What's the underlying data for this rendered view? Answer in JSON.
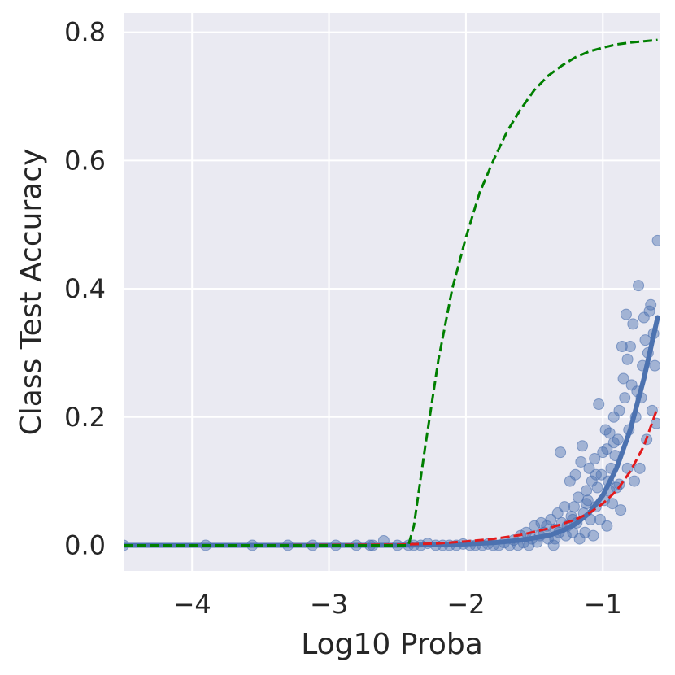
{
  "chart_data": {
    "type": "scatter",
    "title": "",
    "xlabel": "Log10 Proba",
    "ylabel": "Class Test Accuracy",
    "xlim": [
      -4.5,
      -0.58
    ],
    "ylim": [
      -0.04,
      0.83
    ],
    "xticks": [
      -4,
      -3,
      -2,
      -1
    ],
    "xtick_labels": [
      "−4",
      "−3",
      "−2",
      "−1"
    ],
    "yticks": [
      0.0,
      0.2,
      0.4,
      0.6,
      0.8
    ],
    "ytick_labels": [
      "0.0",
      "0.2",
      "0.4",
      "0.6",
      "0.8"
    ],
    "grid": true,
    "legend": "none",
    "colors": {
      "background": "#eaeaf2",
      "grid": "#ffffff",
      "points": "#4c72b0",
      "fit": "#4c72b0",
      "lower_bound": "#e31a1c",
      "upper_bound": "#007f00"
    },
    "series": [
      {
        "kind": "scatter",
        "color": "#4c72b0",
        "points": [
          [
            -4.5,
            0.0
          ],
          [
            -3.9,
            0.0
          ],
          [
            -3.56,
            0.0
          ],
          [
            -3.3,
            0.0
          ],
          [
            -3.12,
            0.0
          ],
          [
            -2.95,
            0.0
          ],
          [
            -2.8,
            0.0
          ],
          [
            -2.7,
            0.0
          ],
          [
            -2.68,
            0.0
          ],
          [
            -2.6,
            0.007
          ],
          [
            -2.5,
            0.0
          ],
          [
            -2.42,
            0.0
          ],
          [
            -2.38,
            0.0
          ],
          [
            -2.33,
            0.0
          ],
          [
            -2.28,
            0.003
          ],
          [
            -2.22,
            0.0
          ],
          [
            -2.17,
            0.0
          ],
          [
            -2.12,
            0.0
          ],
          [
            -2.07,
            0.0
          ],
          [
            -2.02,
            0.002
          ],
          [
            -1.97,
            0.0
          ],
          [
            -1.93,
            0.0
          ],
          [
            -1.88,
            0.0
          ],
          [
            -1.84,
            0.002
          ],
          [
            -1.8,
            0.0
          ],
          [
            -1.76,
            0.0
          ],
          [
            -1.72,
            0.004
          ],
          [
            -1.68,
            0.0
          ],
          [
            -1.65,
            0.008
          ],
          [
            -1.62,
            0.0
          ],
          [
            -1.6,
            0.015
          ],
          [
            -1.58,
            0.004
          ],
          [
            -1.56,
            0.02
          ],
          [
            -1.54,
            0.0
          ],
          [
            -1.52,
            0.01
          ],
          [
            -1.5,
            0.03
          ],
          [
            -1.48,
            0.005
          ],
          [
            -1.46,
            0.015
          ],
          [
            -1.45,
            0.035
          ],
          [
            -1.43,
            0.02
          ],
          [
            -1.41,
            0.03
          ],
          [
            -1.4,
            0.01
          ],
          [
            -1.38,
            0.04
          ],
          [
            -1.36,
            0.0
          ],
          [
            -1.35,
            0.025
          ],
          [
            -1.33,
            0.05
          ],
          [
            -1.32,
            0.02
          ],
          [
            -1.31,
            0.145
          ],
          [
            -1.3,
            0.035
          ],
          [
            -1.28,
            0.06
          ],
          [
            -1.27,
            0.015
          ],
          [
            -1.26,
            0.03
          ],
          [
            -1.24,
            0.1
          ],
          [
            -1.23,
            0.045
          ],
          [
            -1.22,
            0.02
          ],
          [
            -1.21,
            0.06
          ],
          [
            -1.2,
            0.11
          ],
          [
            -1.19,
            0.035
          ],
          [
            -1.18,
            0.075
          ],
          [
            -1.17,
            0.01
          ],
          [
            -1.16,
            0.13
          ],
          [
            -1.15,
            0.155
          ],
          [
            -1.14,
            0.05
          ],
          [
            -1.13,
            0.02
          ],
          [
            -1.12,
            0.085
          ],
          [
            -1.11,
            0.07
          ],
          [
            -1.1,
            0.12
          ],
          [
            -1.09,
            0.04
          ],
          [
            -1.08,
            0.1
          ],
          [
            -1.07,
            0.015
          ],
          [
            -1.06,
            0.135
          ],
          [
            -1.05,
            0.06
          ],
          [
            -1.04,
            0.09
          ],
          [
            -1.03,
            0.22
          ],
          [
            -1.02,
            0.04
          ],
          [
            -1.01,
            0.11
          ],
          [
            -1.0,
            0.145
          ],
          [
            -0.99,
            0.07
          ],
          [
            -0.98,
            0.18
          ],
          [
            -0.97,
            0.03
          ],
          [
            -0.96,
            0.1
          ],
          [
            -0.95,
            0.175
          ],
          [
            -0.94,
            0.12
          ],
          [
            -0.93,
            0.065
          ],
          [
            -0.92,
            0.2
          ],
          [
            -0.91,
            0.14
          ],
          [
            -0.9,
            0.09
          ],
          [
            -0.89,
            0.165
          ],
          [
            -0.88,
            0.21
          ],
          [
            -0.87,
            0.055
          ],
          [
            -0.86,
            0.31
          ],
          [
            -0.85,
            0.26
          ],
          [
            -0.84,
            0.23
          ],
          [
            -0.83,
            0.36
          ],
          [
            -0.82,
            0.29
          ],
          [
            -0.81,
            0.18
          ],
          [
            -0.8,
            0.31
          ],
          [
            -0.79,
            0.25
          ],
          [
            -0.78,
            0.345
          ],
          [
            -0.77,
            0.1
          ],
          [
            -0.76,
            0.2
          ],
          [
            -0.75,
            0.24
          ],
          [
            -0.74,
            0.405
          ],
          [
            -0.73,
            0.12
          ],
          [
            -0.72,
            0.23
          ],
          [
            -0.71,
            0.28
          ],
          [
            -0.7,
            0.355
          ],
          [
            -0.69,
            0.32
          ],
          [
            -0.68,
            0.165
          ],
          [
            -0.67,
            0.3
          ],
          [
            -0.66,
            0.365
          ],
          [
            -0.65,
            0.375
          ],
          [
            -0.64,
            0.21
          ],
          [
            -0.63,
            0.33
          ],
          [
            -0.62,
            0.28
          ],
          [
            -0.61,
            0.19
          ],
          [
            -0.6,
            0.475
          ],
          [
            -0.92,
            0.16
          ],
          [
            -0.95,
            0.085
          ],
          [
            -1.05,
            0.11
          ],
          [
            -0.88,
            0.095
          ],
          [
            -0.82,
            0.12
          ],
          [
            -0.97,
            0.15
          ],
          [
            -1.12,
            0.065
          ],
          [
            -1.22,
            0.04
          ],
          [
            -1.35,
            0.01
          ]
        ]
      },
      {
        "kind": "line",
        "style": "solid",
        "color": "#4c72b0",
        "x": [
          -4.5,
          -3.5,
          -2.5,
          -2.2,
          -2.0,
          -1.8,
          -1.6,
          -1.4,
          -1.3,
          -1.2,
          -1.1,
          -1.0,
          -0.9,
          -0.8,
          -0.7,
          -0.6
        ],
        "y": [
          0.0,
          0.0,
          0.0,
          0.001,
          0.002,
          0.004,
          0.008,
          0.015,
          0.022,
          0.033,
          0.05,
          0.078,
          0.12,
          0.18,
          0.26,
          0.355
        ]
      },
      {
        "kind": "line",
        "style": "dashed",
        "color": "#e31a1c",
        "x": [
          -4.5,
          -3.5,
          -2.5,
          -2.2,
          -2.0,
          -1.8,
          -1.6,
          -1.4,
          -1.2,
          -1.1,
          -1.0,
          -0.9,
          -0.8,
          -0.7,
          -0.6
        ],
        "y": [
          0.0,
          0.0,
          0.001,
          0.003,
          0.006,
          0.01,
          0.016,
          0.026,
          0.04,
          0.05,
          0.065,
          0.085,
          0.115,
          0.155,
          0.215
        ]
      },
      {
        "kind": "line",
        "style": "dashed",
        "color": "#007f00",
        "x": [
          -4.5,
          -3.0,
          -2.42,
          -2.38,
          -2.3,
          -2.2,
          -2.1,
          -2.0,
          -1.9,
          -1.8,
          -1.7,
          -1.6,
          -1.5,
          -1.4,
          -1.3,
          -1.2,
          -1.1,
          -1.0,
          -0.9,
          -0.8,
          -0.7,
          -0.6
        ],
        "y": [
          0.0,
          0.0,
          0.0,
          0.03,
          0.15,
          0.29,
          0.4,
          0.48,
          0.55,
          0.6,
          0.645,
          0.68,
          0.71,
          0.732,
          0.748,
          0.761,
          0.77,
          0.776,
          0.781,
          0.784,
          0.786,
          0.788
        ]
      }
    ]
  }
}
